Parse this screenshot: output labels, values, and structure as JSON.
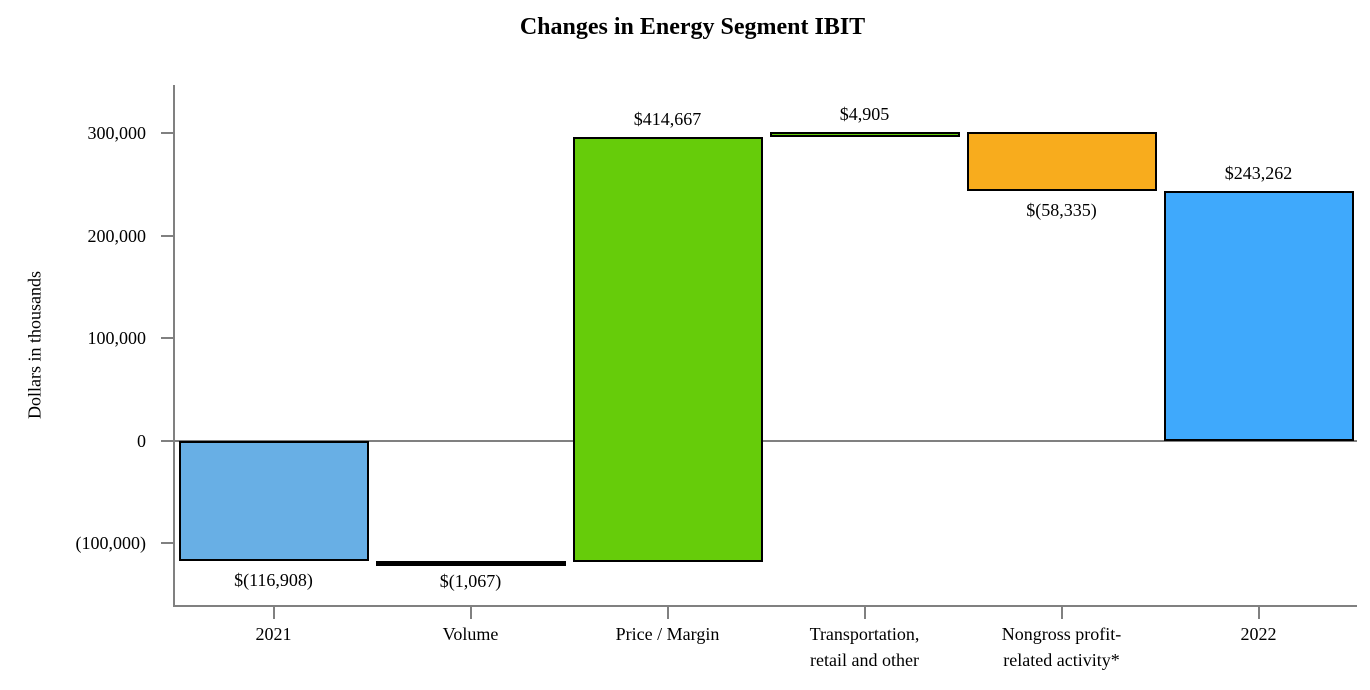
{
  "chart_data": {
    "type": "bar",
    "subtype": "waterfall",
    "title": "Changes in Energy Segment IBIT",
    "ylabel": "Dollars in thousands",
    "xlabel": "",
    "grid": false,
    "legend": "none",
    "axis_color": "#808080",
    "bar_border_color": "#000000",
    "ylim": [
      -160000,
      347000
    ],
    "yticks": [
      {
        "value": 300000,
        "label": "300,000"
      },
      {
        "value": 200000,
        "label": "200,000"
      },
      {
        "value": 100000,
        "label": "100,000"
      },
      {
        "value": 0,
        "label": "0"
      },
      {
        "value": -100000,
        "label": "(100,000)"
      }
    ],
    "categories": [
      "2021",
      "Volume",
      "Price / Margin",
      "Transportation,\nretail and other",
      "Nongross profit-\nrelated activity*",
      "2022"
    ],
    "bars": [
      {
        "category": "2021",
        "kind": "total",
        "value": -116908,
        "label": "$(116,908)",
        "label_position": "below",
        "color": "#68AFE5"
      },
      {
        "category": "Volume",
        "kind": "delta",
        "value": -1067,
        "label": "$(1,067)",
        "label_position": "below",
        "color": "#000000"
      },
      {
        "category": "Price / Margin",
        "kind": "delta",
        "value": 414667,
        "label": "$414,667",
        "label_position": "above",
        "color": "#66CC0A"
      },
      {
        "category": "Transportation,\nretail and other",
        "kind": "delta",
        "value": 4905,
        "label": "$4,905",
        "label_position": "above",
        "color": "#66CC0A"
      },
      {
        "category": "Nongross profit-\nrelated activity*",
        "kind": "delta",
        "value": -58335,
        "label": "$(58,335)",
        "label_position": "below",
        "color": "#F8AC1D"
      },
      {
        "category": "2022",
        "kind": "total",
        "value": 243262,
        "label": "$243,262",
        "label_position": "above",
        "color": "#3FA9FC"
      }
    ]
  }
}
